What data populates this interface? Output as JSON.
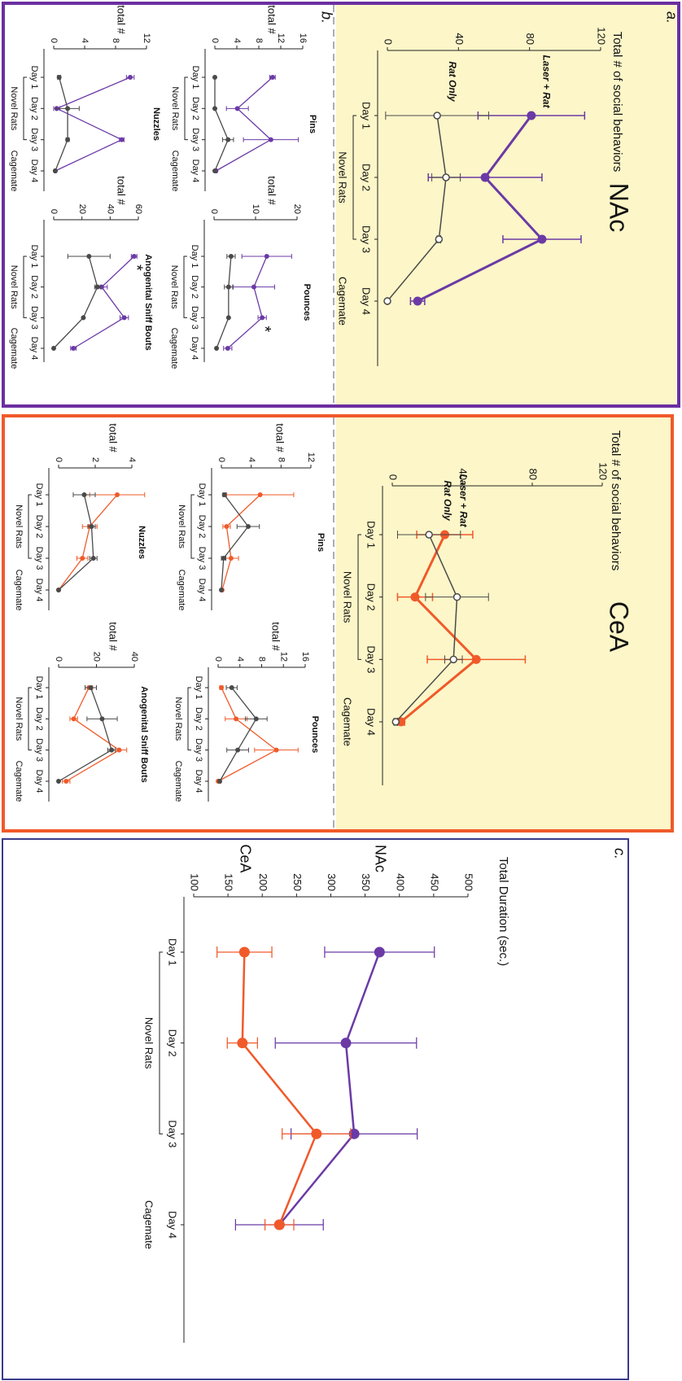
{
  "figure": {
    "panel_a": "a.",
    "panel_b": "b.",
    "panel_c": "c.",
    "region_1": "NAc",
    "region_2": "CeA"
  },
  "chart_data": [
    {
      "type": "line",
      "ylabel": "Total # of social behaviors",
      "categories": [
        "Day 1",
        "Day 2",
        "Day 3",
        "Day 4"
      ],
      "group_labels": [
        "Novel Rats",
        "Cagemate"
      ],
      "ylim": [
        0,
        120
      ],
      "yticks": [
        0,
        40,
        80,
        120
      ],
      "series": [
        {
          "name": "Laser + Rat",
          "color": "#6b3aa6",
          "marker": "filled",
          "values": [
            81,
            55,
            87,
            17
          ],
          "errors": [
            30,
            32,
            22,
            4
          ]
        },
        {
          "name": "Rat Only",
          "color": "#4a4a4a",
          "marker": "open",
          "values": [
            28,
            33,
            29,
            0
          ],
          "errors": [
            29,
            8,
            1,
            0
          ]
        }
      ]
    },
    {
      "type": "line",
      "title": "Pins",
      "ylabel": "total #",
      "categories": [
        "Day 1",
        "Day 2",
        "Day 3",
        "Day 4"
      ],
      "group_labels": [
        "Novel Rats",
        "Cagemate"
      ],
      "ylim": [
        0,
        16
      ],
      "yticks": [
        0,
        4,
        8,
        12,
        16
      ],
      "series": [
        {
          "color": "#6b3aa6",
          "marker": "filled",
          "values": [
            10.5,
            4.1,
            10.2,
            0.2
          ],
          "errors": [
            0.5,
            2,
            5,
            0.2
          ]
        },
        {
          "color": "#4a4a4a",
          "marker": "filled",
          "values": [
            0,
            0,
            2.4,
            0
          ],
          "errors": [
            0,
            0,
            1,
            0
          ]
        }
      ]
    },
    {
      "type": "line",
      "title": "Pounces",
      "ylabel": "total #",
      "categories": [
        "Day 1",
        "Day 2",
        "Day 3",
        "Day 4"
      ],
      "group_labels": [
        "Novel Rats",
        "Cagemate"
      ],
      "ylim": [
        0,
        20
      ],
      "yticks": [
        0,
        10,
        20
      ],
      "series": [
        {
          "color": "#6b3aa6",
          "marker": "filled",
          "values": [
            12.7,
            9.6,
            11.6,
            3.3
          ],
          "errors": [
            6,
            5,
            1,
            1
          ]
        },
        {
          "color": "#4a4a4a",
          "marker": "filled",
          "values": [
            4.1,
            3.5,
            3.5,
            0.6
          ],
          "errors": [
            1,
            1,
            0,
            0
          ]
        }
      ],
      "annotations": [
        {
          "text": "*",
          "series": 0,
          "index": 2
        }
      ]
    },
    {
      "type": "line",
      "title": "Nuzzles",
      "ylabel": "total #",
      "categories": [
        "Day 1",
        "Day 2",
        "Day 3",
        "Day 4"
      ],
      "group_labels": [
        "Novel Rats",
        "Cagemate"
      ],
      "ylim": [
        0,
        12
      ],
      "yticks": [
        0,
        4,
        8,
        12
      ],
      "series": [
        {
          "color": "#6b3aa6",
          "marker": "filled",
          "values": [
            9.9,
            0.4,
            8.8,
            0.2
          ],
          "errors": [
            0.5,
            0.4,
            0.3,
            0.1
          ]
        },
        {
          "color": "#4a4a4a",
          "marker": "filled",
          "values": [
            0.7,
            1.8,
            1.8,
            0.2
          ],
          "errors": [
            0.2,
            1.5,
            0.2,
            0.1
          ]
        }
      ]
    },
    {
      "type": "line",
      "title": "Anogenital Sniff Bouts",
      "ylabel": "total #",
      "categories": [
        "Day 1",
        "Day 2",
        "Day 3",
        "Day 4"
      ],
      "group_labels": [
        "Novel Rats",
        "Cagemate"
      ],
      "ylim": [
        0,
        60
      ],
      "yticks": [
        0,
        20,
        40,
        60
      ],
      "series": [
        {
          "color": "#6b3aa6",
          "marker": "filled",
          "values": [
            57,
            34,
            50,
            14
          ],
          "errors": [
            2,
            4,
            3,
            2
          ]
        },
        {
          "color": "#4a4a4a",
          "marker": "filled",
          "values": [
            25,
            31,
            21,
            0
          ],
          "errors": [
            15,
            2,
            0,
            0
          ]
        }
      ],
      "annotations": [
        {
          "text": "*",
          "series": 0,
          "index": 0
        }
      ]
    },
    {
      "type": "line",
      "ylabel": "Total # of social behaviors",
      "categories": [
        "Day 1",
        "Day 2",
        "Day 3",
        "Day 4"
      ],
      "group_labels": [
        "Novel Rats",
        "Cagemate"
      ],
      "ylim": [
        0,
        120
      ],
      "yticks": [
        0,
        40,
        80,
        120
      ],
      "series": [
        {
          "name": "Laser + Rat",
          "color": "#f05a2a",
          "marker": "filled",
          "values": [
            30,
            13,
            48,
            5
          ],
          "errors": [
            16,
            10,
            28,
            2
          ]
        },
        {
          "name": "Rat Only",
          "color": "#4a4a4a",
          "marker": "open",
          "values": [
            21,
            37,
            35,
            2
          ],
          "errors": [
            18,
            18,
            5,
            1
          ]
        }
      ]
    },
    {
      "type": "line",
      "title": "Pins",
      "ylabel": "total #",
      "categories": [
        "Day 1",
        "Day 2",
        "Day 3",
        "Day 4"
      ],
      "group_labels": [
        "Novel Rats",
        "Cagemate"
      ],
      "ylim": [
        0,
        12
      ],
      "yticks": [
        0,
        4,
        8,
        12
      ],
      "series": [
        {
          "color": "#f05a2a",
          "marker": "filled",
          "values": [
            5.2,
            0.7,
            1.3,
            0.1
          ],
          "errors": [
            4.5,
            0.5,
            1,
            0.1
          ]
        },
        {
          "color": "#4a4a4a",
          "marker": "filled",
          "values": [
            0.4,
            3.6,
            0.3,
            0
          ],
          "errors": [
            0.2,
            1.5,
            0.3,
            0
          ]
        }
      ]
    },
    {
      "type": "line",
      "title": "Pounces",
      "ylabel": "total #",
      "categories": [
        "Day 1",
        "Day 2",
        "Day 3",
        "Day 4"
      ],
      "group_labels": [
        "Novel Rats",
        "Cagemate"
      ],
      "ylim": [
        0,
        16
      ],
      "yticks": [
        0,
        4,
        8,
        12,
        16
      ],
      "series": [
        {
          "color": "#f05a2a",
          "marker": "filled",
          "values": [
            0.6,
            3.3,
            10.7,
            0
          ],
          "errors": [
            0.3,
            2,
            4,
            0
          ]
        },
        {
          "color": "#4a4a4a",
          "marker": "filled",
          "values": [
            2.5,
            7,
            3.6,
            0.3
          ],
          "errors": [
            1,
            2,
            2,
            0.2
          ]
        }
      ]
    },
    {
      "type": "line",
      "title": "Nuzzles",
      "ylabel": "total #",
      "categories": [
        "Day 1",
        "Day 2",
        "Day 3",
        "Day 4"
      ],
      "group_labels": [
        "Novel Rats",
        "Cagemate"
      ],
      "ylim": [
        0,
        4
      ],
      "yticks": [
        0,
        2,
        4
      ],
      "series": [
        {
          "color": "#f05a2a",
          "marker": "filled",
          "values": [
            3.2,
            1.7,
            1.3,
            0
          ],
          "errors": [
            1.5,
            0.4,
            0.3,
            0
          ]
        },
        {
          "color": "#4a4a4a",
          "marker": "filled",
          "values": [
            1.4,
            1.8,
            1.9,
            0
          ],
          "errors": [
            0.6,
            0.2,
            0.2,
            0
          ]
        }
      ]
    },
    {
      "type": "line",
      "title": "Anogenital Sniff Bouts",
      "ylabel": "total #",
      "categories": [
        "Day 1",
        "Day 2",
        "Day 3",
        "Day 4"
      ],
      "group_labels": [
        "Novel Rats",
        "Cagemate"
      ],
      "ylim": [
        0,
        40
      ],
      "yticks": [
        0,
        20,
        40
      ],
      "series": [
        {
          "color": "#f05a2a",
          "marker": "filled",
          "values": [
            16,
            8,
            32,
            4
          ],
          "errors": [
            2,
            2,
            4,
            2
          ]
        },
        {
          "color": "#4a4a4a",
          "marker": "filled",
          "values": [
            17,
            23,
            28,
            0
          ],
          "errors": [
            3,
            8,
            2,
            0
          ]
        }
      ]
    },
    {
      "type": "line",
      "ylabel": "Total Duration (sec.)",
      "categories": [
        "Day 1",
        "Day 2",
        "Day 3",
        "Day 4"
      ],
      "group_labels": [
        "Novel Rats",
        "Cagemate"
      ],
      "ylim": [
        100,
        500
      ],
      "yticks": [
        100,
        150,
        200,
        250,
        300,
        350,
        400,
        450,
        500
      ],
      "series": [
        {
          "name": "NAc",
          "color": "#6b3aa6",
          "marker": "filled",
          "values": [
            371,
            322,
            334,
            225
          ],
          "errors": [
            80,
            103,
            92,
            64
          ]
        },
        {
          "name": "CeA",
          "color": "#f05a2a",
          "marker": "filled",
          "values": [
            174,
            171,
            279,
            225
          ],
          "errors": [
            40,
            22,
            50,
            21
          ]
        }
      ]
    }
  ]
}
